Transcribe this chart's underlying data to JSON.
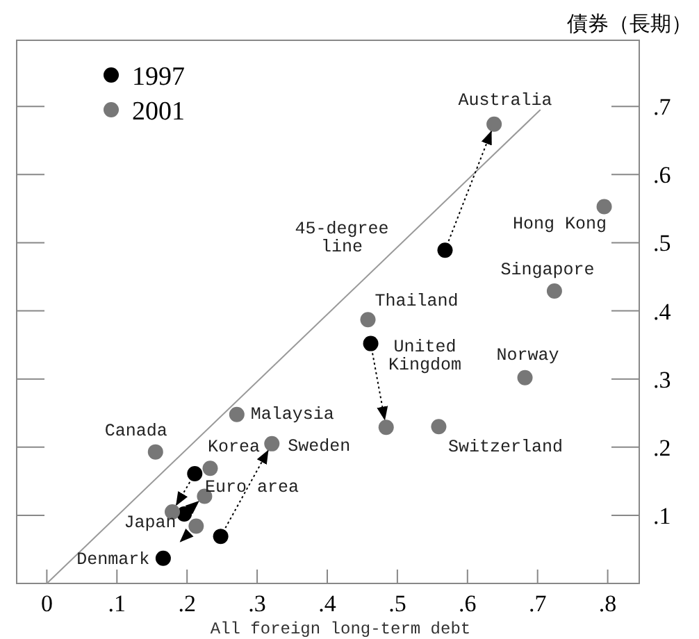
{
  "chart_data": {
    "type": "scatter",
    "xlabel": "All foreign long-term debt",
    "ylabel": "債券（長期）",
    "xlim": [
      -0.043,
      0.845
    ],
    "ylim": [
      0,
      0.797
    ],
    "xticks": [
      0,
      {
        "value": 0.1,
        "label": ".1"
      },
      {
        "value": 0.2,
        "label": ".2"
      },
      {
        "value": 0.3,
        "label": ".3"
      },
      {
        "value": 0.4,
        "label": ".4"
      },
      {
        "value": 0.5,
        "label": ".5"
      },
      {
        "value": 0.6,
        "label": ".6"
      },
      {
        "value": 0.7,
        "label": ".7"
      },
      {
        "value": 0.8,
        "label": ".8"
      }
    ],
    "yticks": [
      {
        "value": 0.1,
        "label": ".1"
      },
      {
        "value": 0.2,
        "label": ".2"
      },
      {
        "value": 0.3,
        "label": ".3"
      },
      {
        "value": 0.4,
        "label": ".4"
      },
      {
        "value": 0.5,
        "label": ".5"
      },
      {
        "value": 0.6,
        "label": ".6"
      },
      {
        "value": 0.7,
        "label": ".7"
      }
    ],
    "legend": "top left",
    "marker": "circle",
    "series": [
      {
        "type": "line",
        "color": "#999999",
        "x": [
          0,
          0.704
        ],
        "values": [
          0,
          0.695
        ],
        "line_style": "solid",
        "marker": "none"
      },
      {
        "name": "1997",
        "color": "#000000",
        "x": [
          0.568,
          0.462,
          0.211,
          0.196,
          0.248,
          0.166
        ],
        "values": [
          0.489,
          0.352,
          0.161,
          0.102,
          0.069,
          0.037
        ]
      },
      {
        "name": "2001",
        "color": "#777777",
        "x": [
          0.638,
          0.795,
          0.724,
          0.458,
          0.682,
          0.559,
          0.484,
          0.271,
          0.155,
          0.321,
          0.233,
          0.225,
          0.179,
          0.213
        ],
        "values": [
          0.674,
          0.553,
          0.429,
          0.387,
          0.302,
          0.23,
          0.229,
          0.248,
          0.193,
          0.205,
          0.169,
          0.128,
          0.105,
          0.084
        ]
      }
    ],
    "annotations": [
      {
        "text": "Australia",
        "x": 0.638,
        "y": 0.674
      },
      {
        "text": "Hong Kong",
        "x": 0.795,
        "y": 0.553
      },
      {
        "text": "Singapore",
        "x": 0.724,
        "y": 0.429
      },
      {
        "text": "Thailand",
        "x": 0.458,
        "y": 0.387
      },
      {
        "text": "United\nKingdom",
        "x": 0.462,
        "y": 0.352
      },
      {
        "text": "Norway",
        "x": 0.682,
        "y": 0.302
      },
      {
        "text": "Switzerland",
        "x": 0.559,
        "y": 0.23
      },
      {
        "text": "Malaysia",
        "x": 0.271,
        "y": 0.248
      },
      {
        "text": "Canada",
        "x": 0.155,
        "y": 0.193
      },
      {
        "text": "Korea",
        "x": 0.233,
        "y": 0.169
      },
      {
        "text": "Sweden",
        "x": 0.321,
        "y": 0.205
      },
      {
        "text": "Euro area",
        "x": 0.225,
        "y": 0.128
      },
      {
        "text": "Japan",
        "x": 0.179,
        "y": 0.105
      },
      {
        "text": "Denmark",
        "x": 0.166,
        "y": 0.037
      },
      {
        "text": "45-degree\nline",
        "x": 0.5,
        "y": 0.5
      }
    ]
  }
}
